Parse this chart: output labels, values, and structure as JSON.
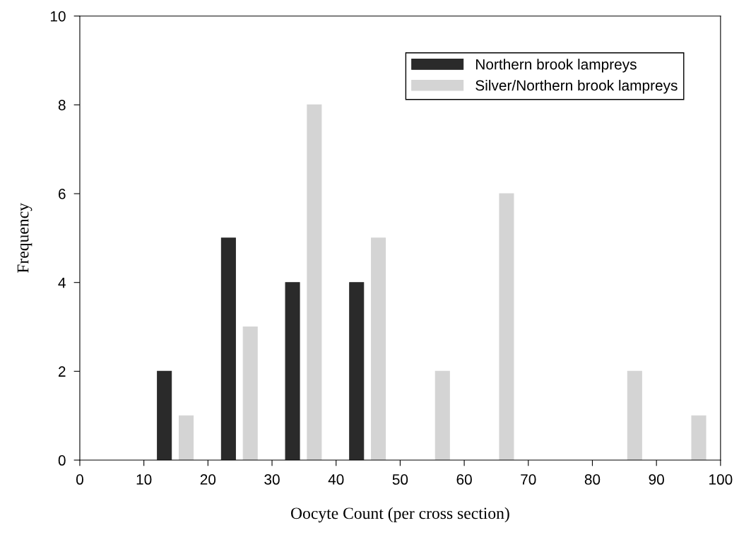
{
  "chart_data": {
    "type": "bar",
    "xlabel": "Oocyte Count (per cross section)",
    "ylabel": "Frequency",
    "xlim": [
      0,
      100
    ],
    "xticks": [
      0,
      10,
      20,
      30,
      40,
      50,
      60,
      70,
      80,
      90,
      100
    ],
    "ylim": [
      0,
      10
    ],
    "yticks": [
      0,
      2,
      4,
      6,
      8,
      10
    ],
    "legend": "top right",
    "grid": false,
    "series": [
      {
        "name": "Northern brook lampreys",
        "color": "#2a2a2a",
        "x": [
          13.2,
          23.2,
          33.2,
          43.2
        ],
        "values": [
          2,
          5,
          4,
          4
        ]
      },
      {
        "name": "Silver/Northern brook lampreys",
        "color": "#d4d4d4",
        "x": [
          16.6,
          26.6,
          36.6,
          46.6,
          56.6,
          66.6,
          86.6,
          96.6
        ],
        "values": [
          1,
          3,
          8,
          5,
          2,
          6,
          2,
          1
        ]
      }
    ]
  }
}
